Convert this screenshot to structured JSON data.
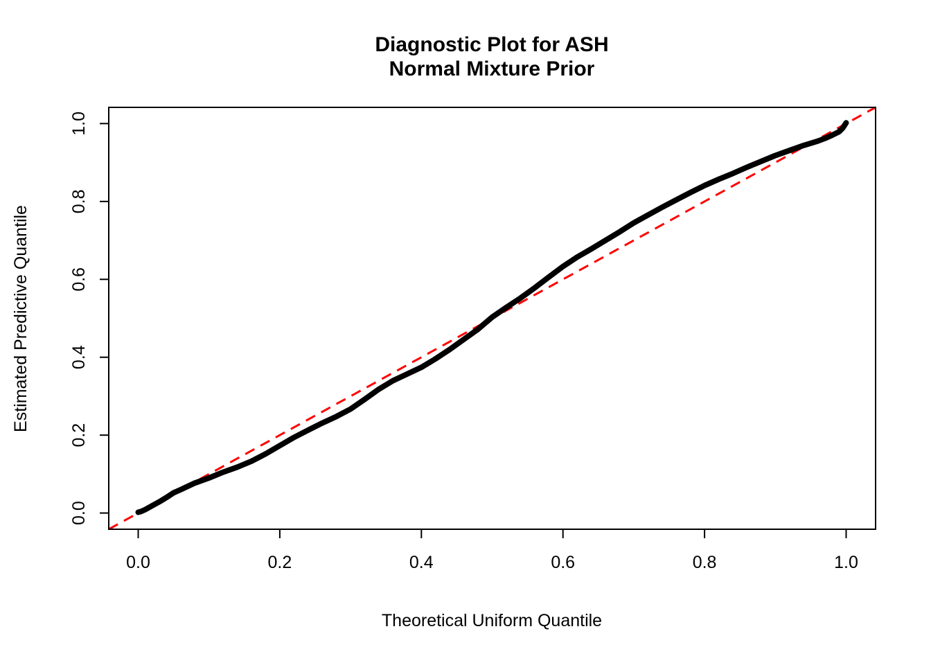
{
  "chart": {
    "title_line1": "Diagnostic Plot for ASH",
    "title_line2": "Normal Mixture Prior",
    "xlabel": "Theoretical Uniform Quantile",
    "ylabel": "Estimated Predictive Quantile"
  },
  "colors": {
    "curve": "#000000",
    "reference_line": "#ff0000",
    "axis": "#000000",
    "background": "#ffffff"
  },
  "chart_data": {
    "type": "scatter",
    "title": "Diagnostic Plot for ASH\nNormal Mixture Prior",
    "xlabel": "Theoretical Uniform Quantile",
    "ylabel": "Estimated Predictive Quantile",
    "xlim": [
      -0.0416,
      1.0416
    ],
    "ylim": [
      -0.0416,
      1.0416
    ],
    "x_ticks": [
      0.0,
      0.2,
      0.4,
      0.6,
      0.8,
      1.0
    ],
    "y_ticks": [
      0.0,
      0.2,
      0.4,
      0.6,
      0.8,
      1.0
    ],
    "x_tick_labels": [
      "0.0",
      "0.2",
      "0.4",
      "0.6",
      "0.8",
      "1.0"
    ],
    "y_tick_labels": [
      "0.0",
      "0.2",
      "0.4",
      "0.6",
      "0.8",
      "1.0"
    ],
    "grid": "off",
    "legend": "none",
    "series": [
      {
        "name": "estimated-predictive-quantiles",
        "type": "dense-point-curve",
        "color": "#000000",
        "stroke_width": 8,
        "points": [
          [
            0.0,
            0.002
          ],
          [
            0.004,
            0.004
          ],
          [
            0.01,
            0.009
          ],
          [
            0.02,
            0.019
          ],
          [
            0.03,
            0.029
          ],
          [
            0.04,
            0.04
          ],
          [
            0.05,
            0.052
          ],
          [
            0.06,
            0.06
          ],
          [
            0.08,
            0.077
          ],
          [
            0.1,
            0.09
          ],
          [
            0.12,
            0.105
          ],
          [
            0.14,
            0.118
          ],
          [
            0.16,
            0.133
          ],
          [
            0.18,
            0.152
          ],
          [
            0.2,
            0.173
          ],
          [
            0.22,
            0.194
          ],
          [
            0.24,
            0.213
          ],
          [
            0.26,
            0.231
          ],
          [
            0.28,
            0.248
          ],
          [
            0.3,
            0.267
          ],
          [
            0.32,
            0.292
          ],
          [
            0.34,
            0.318
          ],
          [
            0.36,
            0.34
          ],
          [
            0.38,
            0.357
          ],
          [
            0.4,
            0.374
          ],
          [
            0.42,
            0.396
          ],
          [
            0.44,
            0.42
          ],
          [
            0.46,
            0.446
          ],
          [
            0.48,
            0.472
          ],
          [
            0.5,
            0.503
          ],
          [
            0.52,
            0.528
          ],
          [
            0.54,
            0.552
          ],
          [
            0.56,
            0.578
          ],
          [
            0.58,
            0.606
          ],
          [
            0.6,
            0.633
          ],
          [
            0.62,
            0.657
          ],
          [
            0.64,
            0.678
          ],
          [
            0.66,
            0.7
          ],
          [
            0.68,
            0.722
          ],
          [
            0.7,
            0.745
          ],
          [
            0.72,
            0.765
          ],
          [
            0.74,
            0.785
          ],
          [
            0.76,
            0.804
          ],
          [
            0.78,
            0.823
          ],
          [
            0.8,
            0.841
          ],
          [
            0.82,
            0.857
          ],
          [
            0.84,
            0.872
          ],
          [
            0.86,
            0.888
          ],
          [
            0.88,
            0.903
          ],
          [
            0.9,
            0.918
          ],
          [
            0.92,
            0.931
          ],
          [
            0.94,
            0.944
          ],
          [
            0.96,
            0.955
          ],
          [
            0.97,
            0.962
          ],
          [
            0.98,
            0.97
          ],
          [
            0.99,
            0.979
          ],
          [
            0.995,
            0.988
          ],
          [
            1.0,
            1.002
          ]
        ]
      },
      {
        "name": "identity-reference-line",
        "type": "abline",
        "style": "dashed",
        "color": "#ff0000",
        "stroke_width": 3,
        "intercept": 0,
        "slope": 1
      }
    ]
  }
}
